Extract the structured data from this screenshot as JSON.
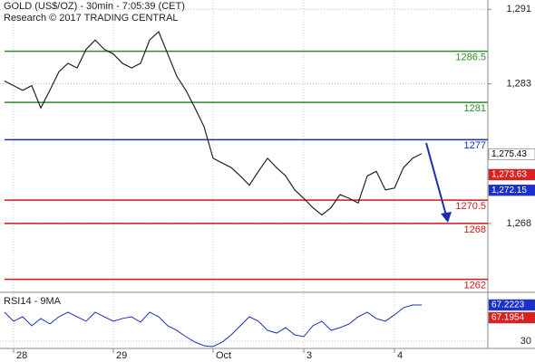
{
  "chart_data": {
    "type": "line",
    "title": "GOLD (US$/OZ) - 30min - 7:05:39 (CET)",
    "subtitle": "Research © 2017 TRADING CENTRAL",
    "categories": [
      null,
      "28",
      null,
      null,
      null,
      null,
      null,
      null,
      null,
      null,
      null,
      null,
      "29",
      null,
      null,
      null,
      null,
      null,
      null,
      null,
      null,
      null,
      null,
      "Oct",
      null,
      null,
      null,
      null,
      null,
      null,
      null,
      null,
      null,
      "3",
      null,
      null,
      null,
      null,
      null,
      null,
      null,
      null,
      null,
      "4",
      null,
      null,
      null
    ],
    "series": [
      {
        "color": "#222222",
        "values": [
          1283.3,
          1282.8,
          1282.3,
          1282.8,
          1280.4,
          1282.3,
          1284.3,
          1285.2,
          1284.7,
          1286.7,
          1287.7,
          1286.7,
          1286.2,
          1285.2,
          1284.7,
          1285.2,
          1287.7,
          1288.6,
          1286.2,
          1283.8,
          1282.3,
          1280.4,
          1278.4,
          1275.0,
          1274.5,
          1274.0,
          1273.1,
          1272.1,
          1273.6,
          1275.0,
          1274.0,
          1273.1,
          1271.6,
          1270.7,
          1269.7,
          1268.9,
          1269.7,
          1271.1,
          1270.7,
          1270.2,
          1273.1,
          1273.6,
          1271.6,
          1271.8,
          1274.0,
          1275.0,
          1275.5
        ]
      }
    ],
    "ylim": [
      1260.7,
      1292.0
    ],
    "yticks": [
      {
        "value": 1291,
        "label": "1,291"
      },
      {
        "value": 1283,
        "label": "1,283"
      },
      {
        "value": 1268,
        "label": "1,268"
      }
    ],
    "grid": true,
    "levels": [
      {
        "value": 1286.5,
        "color": "#2e8b2e"
      },
      {
        "value": 1281,
        "color": "#2e8b2e"
      },
      {
        "value": 1277,
        "color": "#1a2fb0"
      },
      {
        "value": 1270.5,
        "color": "#d01818"
      },
      {
        "value": 1268,
        "color": "#d01818"
      },
      {
        "value": 1262,
        "color": "#d01818"
      }
    ],
    "price_tags": [
      {
        "value": 1275.43,
        "label": "1,275.43",
        "color": "#ffffff"
      },
      {
        "value": 1273.63,
        "label": "1,273.63",
        "color": "#e02020"
      },
      {
        "value": 1272.15,
        "label": "1,272.15",
        "color": "#1a2fd0"
      }
    ],
    "rsi": {
      "title": "RSI14 - 9MA",
      "color": "#1a2fb0",
      "values": [
        59.8,
        50.5,
        55.1,
        45.8,
        53.3,
        47.7,
        55.1,
        59.8,
        55.1,
        50.5,
        59.8,
        55.1,
        50.5,
        53.3,
        55.1,
        49.5,
        59.8,
        55.1,
        45.8,
        41.1,
        34.6,
        29.0,
        25.3,
        24.4,
        29.0,
        36.5,
        45.8,
        55.1,
        50.5,
        41.1,
        38.3,
        43.9,
        36.5,
        34.6,
        45.8,
        50.5,
        41.1,
        43.9,
        47.7,
        55.1,
        59.8,
        53.3,
        50.5,
        57.0,
        64.4,
        67.2,
        67.2
      ],
      "ylim": [
        22.5,
        78.4
      ],
      "yticks": [
        30
      ],
      "tags": [
        {
          "value": 67.2223,
          "label": "67.2223",
          "color": "#1a2fd0"
        },
        {
          "value": 67.1954,
          "label": "67.1954",
          "color": "#e02020"
        }
      ]
    }
  }
}
